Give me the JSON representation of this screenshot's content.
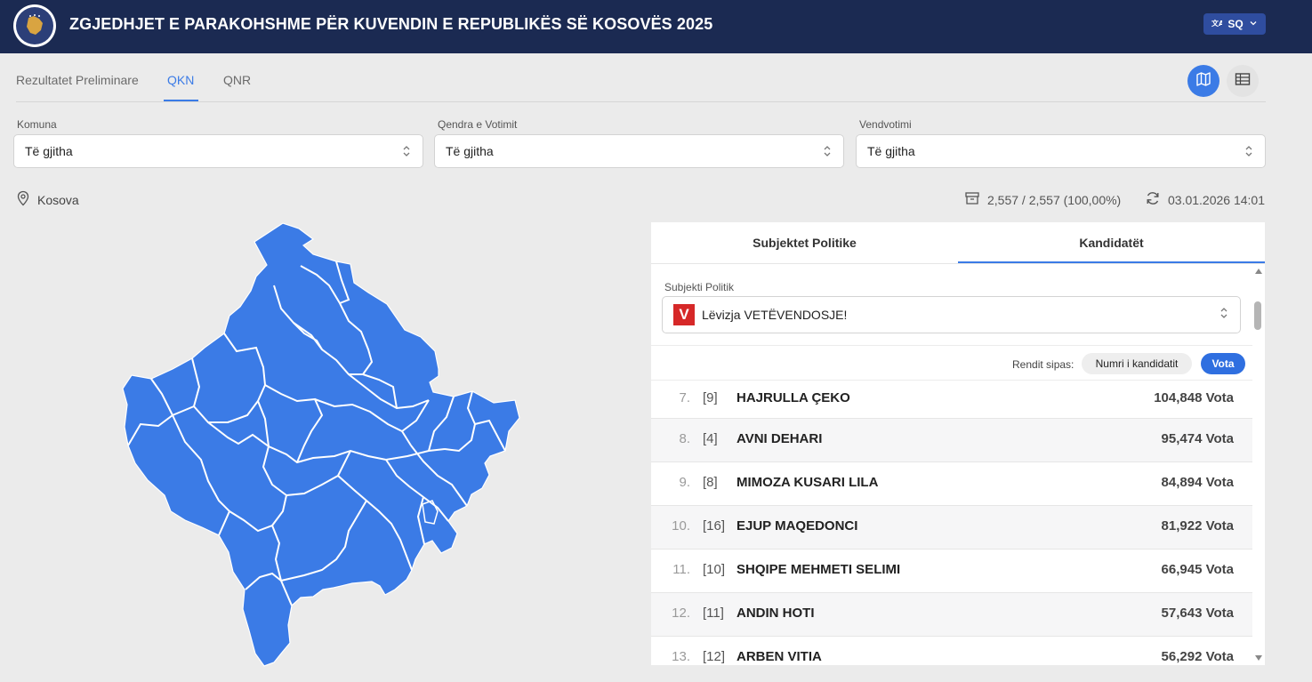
{
  "header": {
    "title": "ZGJEDHJET E PARAKOHSHME PËR KUVENDIN E REPUBLIKËS SË KOSOVËS 2025",
    "language": "SQ",
    "logo_icon": "kosovo-emblem-icon"
  },
  "tabs": [
    {
      "label": "Rezultatet Preliminare",
      "active": false
    },
    {
      "label": "QKN",
      "active": true
    },
    {
      "label": "QNR",
      "active": false
    }
  ],
  "view_toggle": {
    "active": "map",
    "icons": [
      "map-icon",
      "table-icon"
    ]
  },
  "filters": [
    {
      "label": "Komuna",
      "value": "Të gjitha"
    },
    {
      "label": "Qendra e Votimit",
      "value": "Të gjitha"
    },
    {
      "label": "Vendvotimi",
      "value": "Të gjitha"
    }
  ],
  "location": "Kosova",
  "stats": {
    "counted": "2,557 / 2,557 (100,00%)",
    "updated": "03.01.2026 14:01"
  },
  "panel": {
    "tabs": [
      "Subjektet Politike",
      "Kandidatët"
    ],
    "active_tab": "Kandidatët",
    "subject_label": "Subjekti Politik",
    "party_logo_letter": "V",
    "party": "Lëvizja VETËVENDOSJE!",
    "sort_label": "Rendit sipas:",
    "sort_options": [
      "Numri i kandidatit",
      "Vota"
    ],
    "sort_active": "Vota"
  },
  "candidates": [
    {
      "rank": "7.",
      "number": "[9]",
      "name": "HAJRULLA ÇEKO",
      "votes": "104,848 Vota"
    },
    {
      "rank": "8.",
      "number": "[4]",
      "name": "AVNI DEHARI",
      "votes": "95,474 Vota"
    },
    {
      "rank": "9.",
      "number": "[8]",
      "name": "MIMOZA KUSARI LILA",
      "votes": "84,894 Vota"
    },
    {
      "rank": "10.",
      "number": "[16]",
      "name": "EJUP MAQEDONCI",
      "votes": "81,922 Vota"
    },
    {
      "rank": "11.",
      "number": "[10]",
      "name": "SHQIPE MEHMETI SELIMI",
      "votes": "66,945 Vota"
    },
    {
      "rank": "12.",
      "number": "[11]",
      "name": "ANDIN HOTI",
      "votes": "57,643 Vota"
    },
    {
      "rank": "13.",
      "number": "[12]",
      "name": "ARBEN VITIA",
      "votes": "56,292 Vota"
    }
  ],
  "colors": {
    "accent": "#3b7be6",
    "header_bg": "#1b2a52",
    "map_fill": "#3b7be6",
    "party_red": "#d62828"
  }
}
